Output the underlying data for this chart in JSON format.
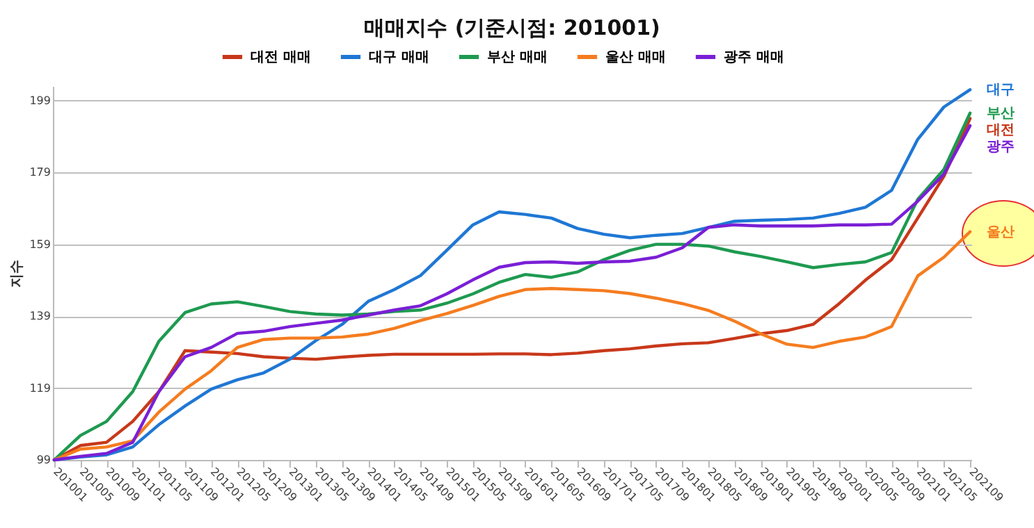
{
  "chart_data": {
    "type": "line",
    "title": "매매지수  (기준시점: 201001)",
    "ylabel": "지수",
    "categories": [
      "201001",
      "201005",
      "201009",
      "201101",
      "201105",
      "201109",
      "201201",
      "201205",
      "201209",
      "201301",
      "201305",
      "201309",
      "201401",
      "201405",
      "201409",
      "201501",
      "201505",
      "201509",
      "201601",
      "201605",
      "201609",
      "201701",
      "201705",
      "201709",
      "201801",
      "201805",
      "201809",
      "201901",
      "201905",
      "201909",
      "202001",
      "202005",
      "202009",
      "202101",
      "202105",
      "202109"
    ],
    "series": [
      {
        "name": "대전 매매",
        "color": "#c8381a",
        "values": [
          99,
          103,
          103.9,
          109.7,
          118,
          129.4,
          129,
          128.6,
          127.7,
          127.3,
          127,
          127.6,
          128.1,
          128.4,
          128.4,
          128.4,
          128.4,
          128.5,
          128.5,
          128.3,
          128.7,
          129.4,
          129.9,
          130.7,
          131.3,
          131.6,
          132.8,
          134.1,
          135,
          136.7,
          142.5,
          149,
          154.7,
          166.3,
          177.9,
          194
        ]
      },
      {
        "name": "대구 매매",
        "color": "#1f77d4",
        "values": [
          99,
          99.8,
          100.4,
          102.6,
          108.8,
          114,
          118.7,
          121.3,
          123.2,
          127,
          132.2,
          136.7,
          143.1,
          146.4,
          150.3,
          157.3,
          164.4,
          168,
          167.3,
          166.3,
          163.4,
          161.8,
          160.8,
          161.5,
          162,
          163.7,
          165.4,
          165.7,
          165.9,
          166.3,
          167.6,
          169.3,
          174,
          188.2,
          197.2,
          202
        ]
      },
      {
        "name": "부산 매매",
        "color": "#1e9a50",
        "values": [
          99,
          105.8,
          109.7,
          118,
          132,
          140,
          142.4,
          143,
          141.7,
          140.3,
          139.6,
          139.3,
          139.6,
          140.3,
          140.7,
          142.6,
          145.2,
          148.4,
          150.6,
          149.8,
          151.3,
          154.7,
          157.3,
          159,
          159,
          158.5,
          156.9,
          155.6,
          154.1,
          152.5,
          153.4,
          154.1,
          156.7,
          171.5,
          179.8,
          195.5
        ]
      },
      {
        "name": "울산 매매",
        "color": "#f57c1f",
        "values": [
          99,
          102,
          102.6,
          104.3,
          112.3,
          118.7,
          123.8,
          130.3,
          132.5,
          132.9,
          132.9,
          133.2,
          134,
          135.6,
          137.8,
          139.7,
          142,
          144.5,
          146.4,
          146.7,
          146.4,
          146.1,
          145.3,
          144,
          142.5,
          140.6,
          137.6,
          134.1,
          131.2,
          130.3,
          132,
          133.2,
          136.1,
          150.2,
          155.4,
          162.5
        ]
      },
      {
        "name": "광주 매매",
        "color": "#7a1fd6",
        "values": [
          99,
          100,
          100.8,
          103.9,
          118,
          127.7,
          130.3,
          134.2,
          134.8,
          136.1,
          137,
          137.9,
          139.3,
          140.7,
          141.9,
          145.2,
          149.1,
          152.6,
          153.9,
          154.1,
          153.7,
          154.1,
          154.3,
          155.4,
          158,
          163.7,
          164.4,
          164.1,
          164.1,
          164.1,
          164.4,
          164.4,
          164.6,
          171,
          178.5,
          192
        ]
      }
    ],
    "annotations": [
      {
        "text": "대구",
        "x": "202109",
        "y": 202
      },
      {
        "text": "부산",
        "x": "202109",
        "y": 195.5
      },
      {
        "text": "대전",
        "x": "202109",
        "y": 194
      },
      {
        "text": "광주",
        "x": "202109",
        "y": 192
      },
      {
        "text": "울산",
        "x": "202109",
        "y": 162.5
      }
    ],
    "ylim": [
      99,
      203
    ],
    "yticks": [
      99,
      119,
      139,
      159,
      179,
      199
    ],
    "grid": "y",
    "legend": "top",
    "line_style": "solid"
  }
}
